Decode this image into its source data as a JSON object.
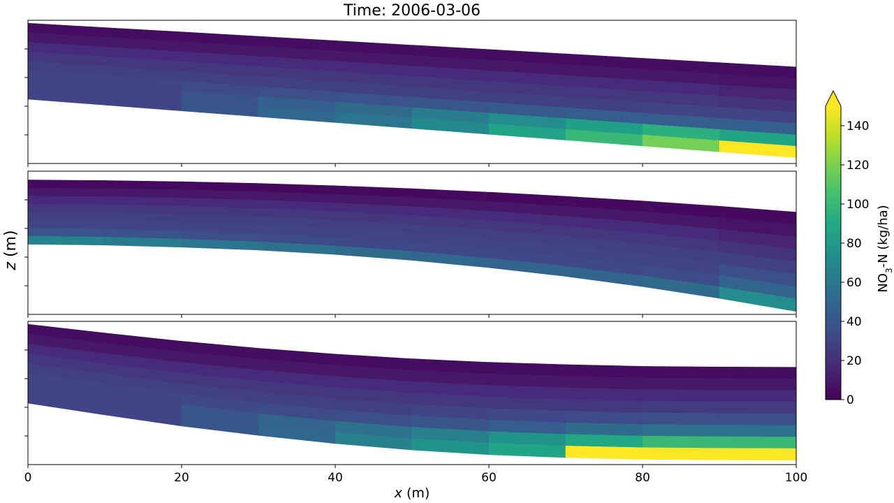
{
  "title": "Time: 2006-03-06",
  "colorbar": {
    "label_prefix": "NO",
    "label_sub": "3",
    "label_suffix": "-N (kg/ha)",
    "min": 0,
    "max": 150,
    "extend": "max",
    "ticks": [
      "0",
      "20",
      "40",
      "60",
      "80",
      "100",
      "120",
      "140"
    ],
    "colormap": "viridis"
  },
  "chart_data": {
    "type": "heatmap",
    "title": "Time: 2006-03-06",
    "xlabel_italic": "x",
    "xlabel_rest": " (m)",
    "ylabel_italic": "z",
    "ylabel_rest": " (m)",
    "xlim": [
      0,
      100
    ],
    "x_ticks": [
      "0",
      "20",
      "40",
      "60",
      "80",
      "100"
    ],
    "columns_x": [
      0,
      10,
      20,
      30,
      40,
      50,
      60,
      70,
      80,
      90,
      100
    ],
    "grid": false,
    "panels": [
      {
        "name": "panel-1",
        "surface": [
          1.2,
          1.05,
          0.9,
          0.75,
          0.6,
          0.45,
          0.3,
          0.15,
          0.0,
          -0.15,
          -0.3
        ],
        "bottom": [
          -1.4,
          -1.6,
          -1.8,
          -2.0,
          -2.2,
          -2.4,
          -2.6,
          -2.8,
          -3.0,
          -3.2,
          -3.4
        ],
        "concentration": [
          [
            5,
            5,
            5,
            5,
            5,
            5,
            5,
            5,
            5,
            5
          ],
          [
            10,
            10,
            10,
            10,
            10,
            10,
            10,
            10,
            10,
            8
          ],
          [
            18,
            18,
            18,
            18,
            18,
            18,
            18,
            18,
            18,
            15
          ],
          [
            24,
            24,
            24,
            24,
            24,
            24,
            24,
            24,
            24,
            22
          ],
          [
            28,
            28,
            28,
            28,
            28,
            28,
            28,
            28,
            30,
            30
          ],
          [
            30,
            30,
            34,
            36,
            38,
            40,
            42,
            44,
            44,
            45
          ],
          [
            30,
            30,
            38,
            45,
            52,
            62,
            72,
            84,
            95,
            88
          ],
          [
            30,
            30,
            40,
            50,
            58,
            70,
            86,
            100,
            118,
            150
          ]
        ]
      },
      {
        "name": "panel-2",
        "surface": [
          1.0,
          0.98,
          0.94,
          0.88,
          0.8,
          0.7,
          0.58,
          0.44,
          0.28,
          0.1,
          -0.1
        ],
        "bottom": [
          -1.2,
          -1.23,
          -1.3,
          -1.4,
          -1.55,
          -1.75,
          -2.0,
          -2.3,
          -2.65,
          -3.05,
          -3.5
        ],
        "concentration": [
          [
            4,
            4,
            4,
            4,
            4,
            4,
            4,
            4,
            4,
            4
          ],
          [
            10,
            10,
            10,
            10,
            10,
            10,
            10,
            10,
            10,
            8
          ],
          [
            18,
            18,
            18,
            18,
            18,
            18,
            18,
            18,
            18,
            15
          ],
          [
            24,
            24,
            24,
            24,
            24,
            24,
            24,
            24,
            24,
            22
          ],
          [
            28,
            28,
            28,
            28,
            28,
            28,
            28,
            28,
            28,
            28
          ],
          [
            30,
            30,
            30,
            30,
            30,
            30,
            30,
            30,
            30,
            36
          ],
          [
            38,
            38,
            36,
            34,
            32,
            32,
            32,
            32,
            34,
            48
          ],
          [
            66,
            62,
            58,
            56,
            52,
            50,
            48,
            48,
            52,
            72
          ]
        ]
      },
      {
        "name": "panel-3",
        "surface": [
          1.2,
          0.9,
          0.62,
          0.38,
          0.18,
          0.02,
          -0.1,
          -0.18,
          -0.24,
          -0.26,
          -0.27
        ],
        "bottom": [
          -1.5,
          -1.9,
          -2.28,
          -2.6,
          -2.88,
          -3.1,
          -3.26,
          -3.36,
          -3.42,
          -3.44,
          -3.45
        ],
        "concentration": [
          [
            5,
            5,
            5,
            5,
            5,
            5,
            5,
            5,
            5,
            5
          ],
          [
            10,
            10,
            10,
            10,
            10,
            10,
            10,
            10,
            10,
            10
          ],
          [
            18,
            18,
            18,
            18,
            18,
            18,
            18,
            18,
            18,
            18
          ],
          [
            24,
            24,
            24,
            24,
            24,
            24,
            24,
            24,
            26,
            26
          ],
          [
            28,
            28,
            28,
            28,
            28,
            30,
            32,
            34,
            36,
            36
          ],
          [
            30,
            30,
            32,
            34,
            36,
            40,
            44,
            52,
            56,
            56
          ],
          [
            30,
            30,
            40,
            48,
            56,
            64,
            76,
            90,
            100,
            100
          ],
          [
            30,
            30,
            40,
            50,
            64,
            76,
            88,
            150,
            150,
            150
          ]
        ]
      }
    ]
  }
}
